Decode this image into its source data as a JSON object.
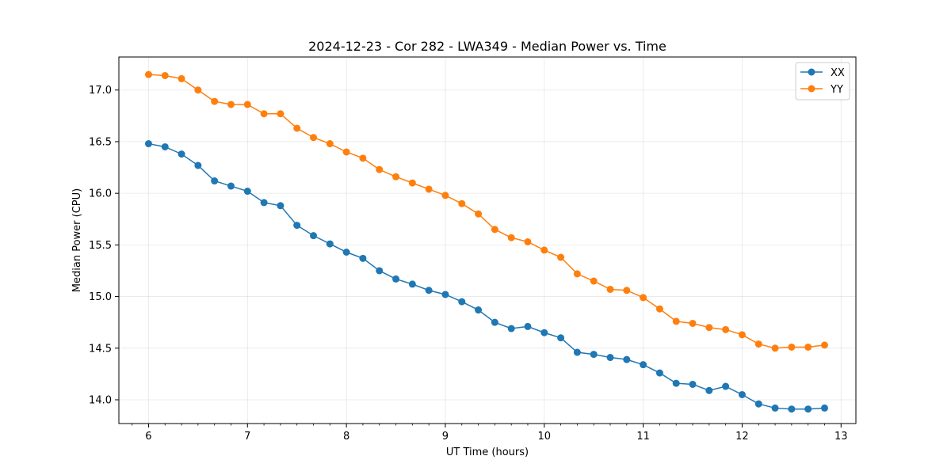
{
  "chart_data": {
    "type": "line",
    "title": "2024-12-23 - Cor 282 - LWA349 - Median Power vs. Time",
    "xlabel": "UT Time (hours)",
    "ylabel": "Median Power (CPU)",
    "xlim": [
      5.7,
      13.15
    ],
    "ylim": [
      13.77,
      17.32
    ],
    "xticks": [
      6,
      7,
      8,
      9,
      10,
      11,
      12,
      13
    ],
    "yticks": [
      14.0,
      14.5,
      15.0,
      15.5,
      16.0,
      16.5,
      17.0
    ],
    "ytick_labels": [
      "14.0",
      "14.5",
      "15.0",
      "15.5",
      "16.0",
      "16.5",
      "17.0"
    ],
    "grid": true,
    "legend_position": "top-right",
    "x": [
      6.0,
      6.1667,
      6.3333,
      6.5,
      6.6667,
      6.8333,
      7.0,
      7.1667,
      7.3333,
      7.5,
      7.6667,
      7.8333,
      8.0,
      8.1667,
      8.3333,
      8.5,
      8.6667,
      8.8333,
      9.0,
      9.1667,
      9.3333,
      9.5,
      9.6667,
      9.8333,
      10.0,
      10.1667,
      10.3333,
      10.5,
      10.6667,
      10.8333,
      11.0,
      11.1667,
      11.3333,
      11.5,
      11.6667,
      11.8333,
      12.0,
      12.1667,
      12.3333,
      12.5,
      12.6667,
      12.8333
    ],
    "series": [
      {
        "name": "XX",
        "color": "#1f77b4",
        "values": [
          16.48,
          16.45,
          16.38,
          16.27,
          16.12,
          16.07,
          16.02,
          15.91,
          15.88,
          15.69,
          15.59,
          15.51,
          15.43,
          15.37,
          15.25,
          15.17,
          15.12,
          15.06,
          15.02,
          14.95,
          14.87,
          14.75,
          14.69,
          14.71,
          14.65,
          14.6,
          14.46,
          14.44,
          14.41,
          14.39,
          14.34,
          14.26,
          14.16,
          14.15,
          14.09,
          14.13,
          14.05,
          13.96,
          13.92,
          13.91,
          13.91,
          13.92
        ]
      },
      {
        "name": "YY",
        "color": "#ff7f0e",
        "values": [
          17.15,
          17.14,
          17.11,
          17.0,
          16.89,
          16.86,
          16.86,
          16.77,
          16.77,
          16.63,
          16.54,
          16.48,
          16.4,
          16.34,
          16.23,
          16.16,
          16.1,
          16.04,
          15.98,
          15.9,
          15.8,
          15.65,
          15.57,
          15.53,
          15.45,
          15.38,
          15.22,
          15.15,
          15.07,
          15.06,
          14.99,
          14.88,
          14.76,
          14.74,
          14.7,
          14.68,
          14.63,
          14.54,
          14.5,
          14.51,
          14.51,
          14.53
        ]
      }
    ]
  }
}
